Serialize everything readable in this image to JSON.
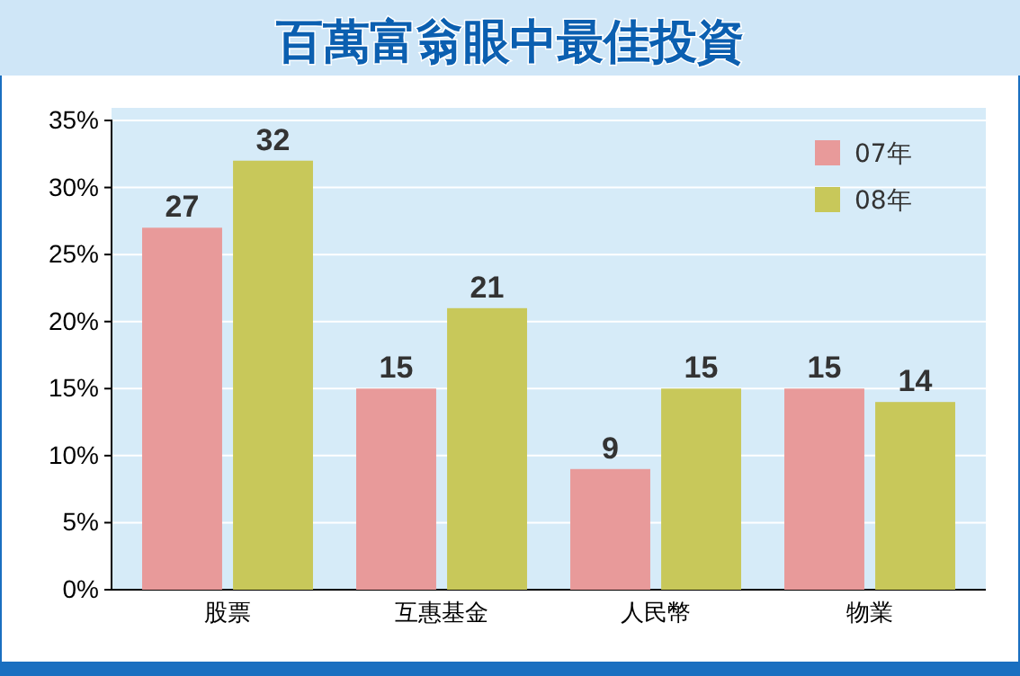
{
  "chart_data": {
    "type": "bar",
    "title": "百萬富翁眼中最佳投資",
    "categories": [
      "股票",
      "互惠基金",
      "人民幣",
      "物業"
    ],
    "series": [
      {
        "name": "07年",
        "color": "#e89a9a",
        "values": [
          27,
          15,
          9,
          15
        ]
      },
      {
        "name": "08年",
        "color": "#c8c85a",
        "values": [
          32,
          21,
          15,
          14
        ]
      }
    ],
    "ylim": [
      0,
      35
    ],
    "yticks": [
      {
        "value": 0,
        "label": "0%"
      },
      {
        "value": 5,
        "label": "5%"
      },
      {
        "value": 10,
        "label": "10%"
      },
      {
        "value": 15,
        "label": "15%"
      },
      {
        "value": 20,
        "label": "20%"
      },
      {
        "value": 25,
        "label": "25%"
      },
      {
        "value": 30,
        "label": "30%"
      },
      {
        "value": 35,
        "label": "35%"
      }
    ],
    "grid": "y",
    "legend": "top right",
    "data_labels": true
  }
}
